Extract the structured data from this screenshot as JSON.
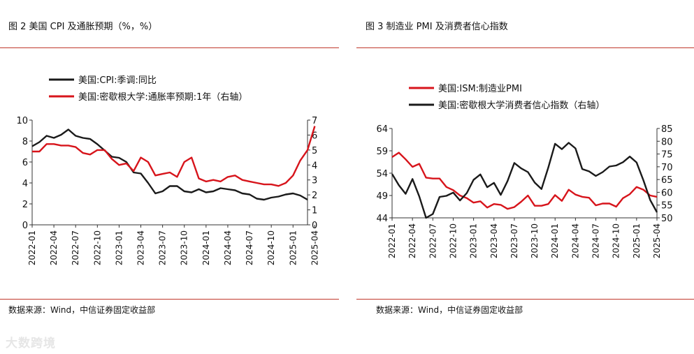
{
  "figure_left": {
    "title": "图 2  美国 CPI 及通胀预期（%，%）",
    "source": "数据来源：Wind，中信证券固定收益部"
  },
  "figure_right": {
    "title": "图 3  制造业 PMI 及消费者信心指数",
    "source": "数据来源：Wind，中信证券固定收益部"
  },
  "watermark": "大数跨境",
  "colors": {
    "black": "#1a1a1a",
    "red": "#d7141b",
    "rule": "#c0392b"
  },
  "chart_data": [
    {
      "type": "line",
      "title": "图 2  美国 CPI 及通胀预期（%，%）",
      "x_ticks": [
        "2022-01",
        "2022-04",
        "2022-07",
        "2022-10",
        "2023-01",
        "2023-04",
        "2023-07",
        "2023-10",
        "2024-01",
        "2024-04",
        "2024-07",
        "2024-10",
        "2025-01",
        "2025-04"
      ],
      "left_axis": {
        "ylim": [
          0,
          10
        ],
        "ticks": [
          0,
          2,
          4,
          6,
          8,
          10
        ]
      },
      "right_axis": {
        "ylim": [
          0,
          7
        ],
        "ticks": [
          0,
          1,
          2,
          3,
          4,
          5,
          6,
          7
        ]
      },
      "series": [
        {
          "name": "美国:CPI:季调:同比",
          "axis": "left",
          "color": "#1a1a1a",
          "values": [
            7.5,
            7.9,
            8.5,
            8.3,
            8.6,
            9.1,
            8.5,
            8.3,
            8.2,
            7.7,
            7.1,
            6.5,
            6.4,
            6.0,
            5.0,
            4.9,
            4.0,
            3.0,
            3.2,
            3.7,
            3.7,
            3.2,
            3.1,
            3.4,
            3.1,
            3.2,
            3.5,
            3.4,
            3.3,
            3.0,
            2.9,
            2.5,
            2.4,
            2.6,
            2.7,
            2.9,
            3.0,
            2.8,
            2.4
          ]
        },
        {
          "name": "美国:密歇根大学:通胀率预期:1年（右轴）",
          "axis": "right",
          "color": "#d7141b",
          "values": [
            4.9,
            4.9,
            5.4,
            5.4,
            5.3,
            5.3,
            5.2,
            4.8,
            4.7,
            5.0,
            5.0,
            4.4,
            4.0,
            4.1,
            3.6,
            4.5,
            4.2,
            3.3,
            3.4,
            3.5,
            3.2,
            4.2,
            4.5,
            3.1,
            2.9,
            3.0,
            2.9,
            3.2,
            3.3,
            3.0,
            2.9,
            2.8,
            2.7,
            2.7,
            2.6,
            2.8,
            3.3,
            4.3,
            5.0,
            6.6
          ]
        }
      ]
    },
    {
      "type": "line",
      "title": "图 3  制造业 PMI 及消费者信心指数",
      "x_ticks": [
        "2022-01",
        "2022-04",
        "2022-07",
        "2022-10",
        "2023-01",
        "2023-04",
        "2023-07",
        "2023-10",
        "2024-01",
        "2024-04",
        "2024-07",
        "2024-10",
        "2025-01",
        "2025-04"
      ],
      "left_axis": {
        "ylim": [
          44,
          64
        ],
        "ticks": [
          44,
          49,
          54,
          59,
          64
        ]
      },
      "right_axis": {
        "ylim": [
          50,
          85
        ],
        "ticks": [
          50,
          55,
          60,
          65,
          70,
          75,
          80,
          85
        ]
      },
      "series": [
        {
          "name": "美国:ISM:制造业PMI",
          "axis": "left",
          "color": "#d7141b",
          "values": [
            57.6,
            58.6,
            57.1,
            55.4,
            56.1,
            53.0,
            52.8,
            52.8,
            50.9,
            50.2,
            49.0,
            48.4,
            47.4,
            47.7,
            46.3,
            47.1,
            46.9,
            46.0,
            46.4,
            47.6,
            49.0,
            46.7,
            46.7,
            47.1,
            49.1,
            47.8,
            50.3,
            49.2,
            48.7,
            48.5,
            46.8,
            47.2,
            47.2,
            46.5,
            48.4,
            49.3,
            50.9,
            50.3,
            49.0,
            48.7
          ]
        },
        {
          "name": "美国:密歇根大学消费者信心指数（右轴）",
          "axis": "right",
          "color": "#1a1a1a",
          "values": [
            67.2,
            62.8,
            59.4,
            65.2,
            58.4,
            50.0,
            51.5,
            58.2,
            58.6,
            59.9,
            56.8,
            59.7,
            64.9,
            67.0,
            62.0,
            63.7,
            59.0,
            64.4,
            71.5,
            69.4,
            67.9,
            63.8,
            61.3,
            69.7,
            79.0,
            76.9,
            79.4,
            77.2,
            69.1,
            68.2,
            66.4,
            67.9,
            70.1,
            70.5,
            71.8,
            74.0,
            71.7,
            64.7,
            57.0,
            52.2
          ]
        }
      ]
    }
  ]
}
